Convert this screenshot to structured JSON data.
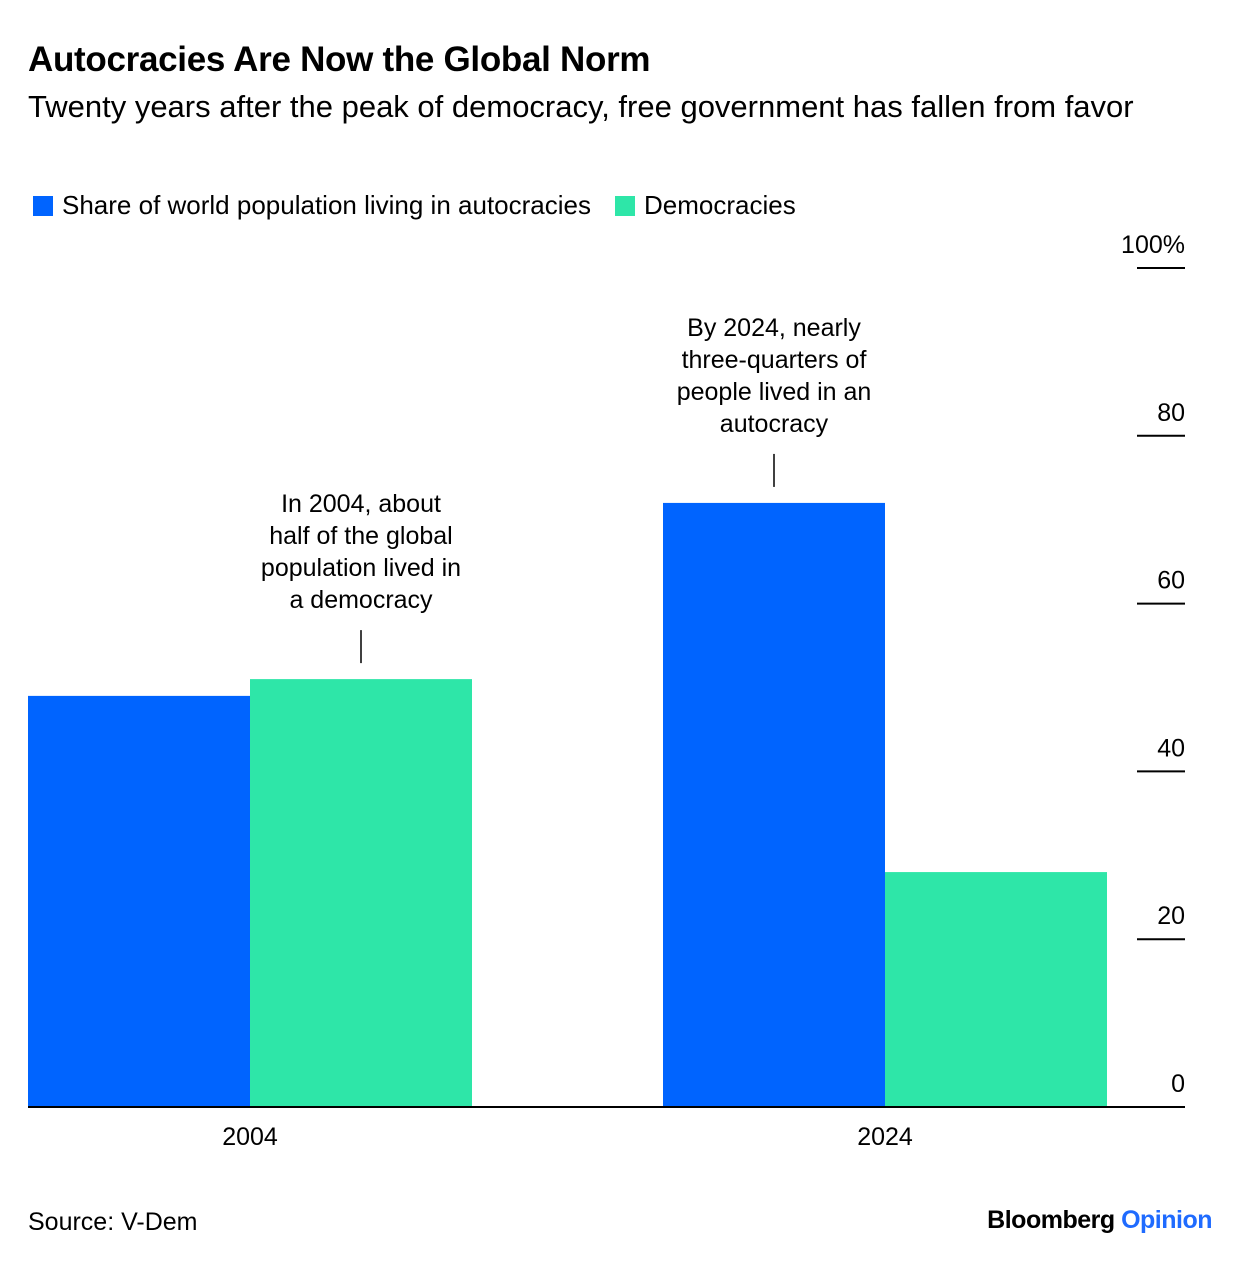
{
  "colors": {
    "autocracies": "#0064ff",
    "democracies": "#2ee6a8",
    "text": "#000000",
    "brand_accent": "#1f6bff"
  },
  "chart_data": {
    "type": "bar",
    "title": "Autocracies Are Now the Global Norm",
    "subtitle": "Twenty years after the peak of democracy, free government has fallen from favor",
    "categories": [
      "2004",
      "2024"
    ],
    "series": [
      {
        "name": "Share of world population living in autocracies",
        "values": [
          49,
          72
        ]
      },
      {
        "name": "Democracies",
        "values": [
          51,
          28
        ]
      }
    ],
    "ylim": [
      0,
      100
    ],
    "yticks": [
      {
        "value": 0,
        "label": "0"
      },
      {
        "value": 20,
        "label": "20"
      },
      {
        "value": 40,
        "label": "40"
      },
      {
        "value": 60,
        "label": "60"
      },
      {
        "value": 80,
        "label": "80"
      },
      {
        "value": 100,
        "label": "100%"
      }
    ],
    "y_axis_side": "right",
    "xlabel": "",
    "ylabel": "",
    "annotations": [
      {
        "category": "2004",
        "series": "Democracies",
        "lines": [
          "In 2004, about",
          "half of the global",
          "population lived in",
          "a democracy"
        ]
      },
      {
        "category": "2024",
        "series": "Share of world population living in autocracies",
        "lines": [
          "By 2024, nearly",
          "three-quarters of",
          "people lived in an",
          "autocracy"
        ]
      }
    ]
  },
  "footer": {
    "source": "Source: V-Dem",
    "brand_name": "Bloomberg",
    "brand_suffix": "Opinion"
  }
}
